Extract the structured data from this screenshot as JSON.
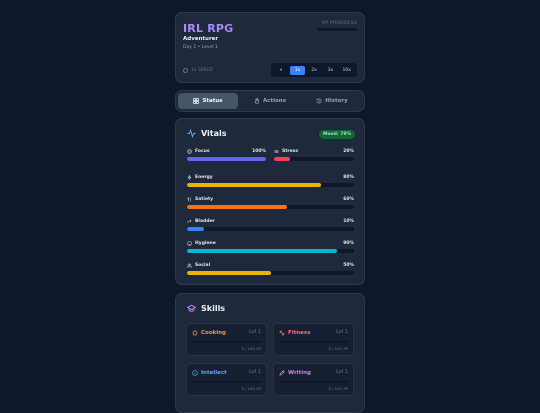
{
  "header": {
    "title": "IRL RPG",
    "class_name": "Adventurer",
    "day_level": "Day 1 • Level 1",
    "xp_label": "XP PROGRESS",
    "xp_fraction": 0.0,
    "speed_label": "1x SPEED",
    "speed_options": [
      "⏸",
      "1x",
      "2x",
      "3x",
      "10x"
    ],
    "speed_active": "1x"
  },
  "tabs": [
    {
      "label": "Status",
      "icon": "grid-icon",
      "active": true
    },
    {
      "label": "Actions",
      "icon": "hand-icon",
      "active": false
    },
    {
      "label": "History",
      "icon": "history-icon",
      "active": false
    }
  ],
  "vitals": {
    "title": "Vitals",
    "mood": "Mood: 79%",
    "stats": [
      {
        "label": "Focus",
        "value": "100%",
        "fraction": 1.0,
        "color": "#6366f1",
        "icon": "focus-icon"
      },
      {
        "label": "Stress",
        "value": "20%",
        "fraction": 0.2,
        "color": "#f43f5e",
        "icon": "stress-icon"
      },
      {
        "label": "Energy",
        "value": "80%",
        "fraction": 0.8,
        "color": "#eab308",
        "icon": "energy-icon"
      },
      {
        "label": "Satiety",
        "value": "60%",
        "fraction": 0.6,
        "color": "#f97316",
        "icon": "utensils-icon"
      },
      {
        "label": "Bladder",
        "value": "10%",
        "fraction": 0.1,
        "color": "#3b82f6",
        "icon": "bladder-icon"
      },
      {
        "label": "Hygiene",
        "value": "90%",
        "fraction": 0.9,
        "color": "#06b6d4",
        "icon": "smile-icon"
      },
      {
        "label": "Social",
        "value": "50%",
        "fraction": 0.5,
        "color": "#eab308",
        "icon": "users-icon"
      }
    ]
  },
  "skills": {
    "title": "Skills",
    "items": [
      {
        "name": "Cooking",
        "level": "Lvl 1",
        "xp": "0 / 100 XP",
        "color": "#fb923c",
        "icon": "chef-hat-icon"
      },
      {
        "name": "Fitness",
        "level": "Lvl 1",
        "xp": "0 / 100 XP",
        "color": "#f87171",
        "icon": "dumbbell-icon"
      },
      {
        "name": "Intellect",
        "level": "Lvl 1",
        "xp": "0 / 100 XP",
        "color": "#60a5fa",
        "icon": "info-icon"
      },
      {
        "name": "Writing",
        "level": "Lvl 1",
        "xp": "0 / 100 XP",
        "color": "#c084fc",
        "icon": "pen-icon"
      }
    ]
  },
  "colors": {
    "accent": "#a78bfa",
    "mood_bg": "#166534",
    "mood_text": "#86efac"
  }
}
